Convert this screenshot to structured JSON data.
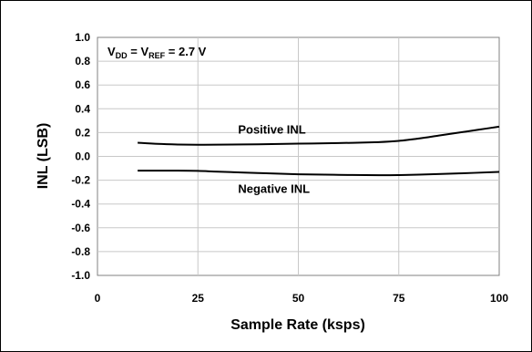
{
  "chart_data": {
    "type": "line",
    "xlabel": "Sample Rate (ksps)",
    "ylabel": "INL (LSB)",
    "xlim": [
      0,
      100
    ],
    "ylim": [
      -1.0,
      1.0
    ],
    "xticks": [
      0,
      25,
      50,
      75,
      100
    ],
    "yticks": [
      1.0,
      0.8,
      0.6,
      0.4,
      0.2,
      0.0,
      -0.2,
      -0.4,
      -0.6,
      -0.8,
      -1.0
    ],
    "xtick_labels": [
      "0",
      "25",
      "50",
      "75",
      "100"
    ],
    "ytick_labels": [
      "1.0",
      "0.8",
      "0.6",
      "0.4",
      "0.2",
      "0.0",
      "-0.2",
      "-0.4",
      "-0.6",
      "-0.8",
      "-1.0"
    ],
    "grid": {
      "horizontal": true,
      "vertical": true
    },
    "condition_label": {
      "v1": "V",
      "v1_sub": "DD",
      "eq1": " = V",
      "v2_sub": "REF",
      "value": " = 2.7 V"
    },
    "series": [
      {
        "name": "Positive INL",
        "x": [
          10,
          15,
          20,
          25,
          30,
          40,
          50,
          60,
          70,
          75,
          80,
          85,
          90,
          95,
          100
        ],
        "y": [
          0.115,
          0.105,
          0.1,
          0.098,
          0.099,
          0.102,
          0.107,
          0.112,
          0.12,
          0.13,
          0.15,
          0.175,
          0.2,
          0.225,
          0.25
        ]
      },
      {
        "name": "Negative INL",
        "x": [
          10,
          15,
          20,
          25,
          30,
          40,
          50,
          60,
          70,
          75,
          80,
          90,
          100
        ],
        "y": [
          -0.12,
          -0.12,
          -0.12,
          -0.122,
          -0.128,
          -0.14,
          -0.15,
          -0.155,
          -0.158,
          -0.157,
          -0.153,
          -0.143,
          -0.13
        ]
      }
    ],
    "annotations": [
      {
        "text": "Positive INL",
        "x": 35,
        "y": 0.23
      },
      {
        "text": "Negative INL",
        "x": 35,
        "y": -0.27
      }
    ]
  }
}
